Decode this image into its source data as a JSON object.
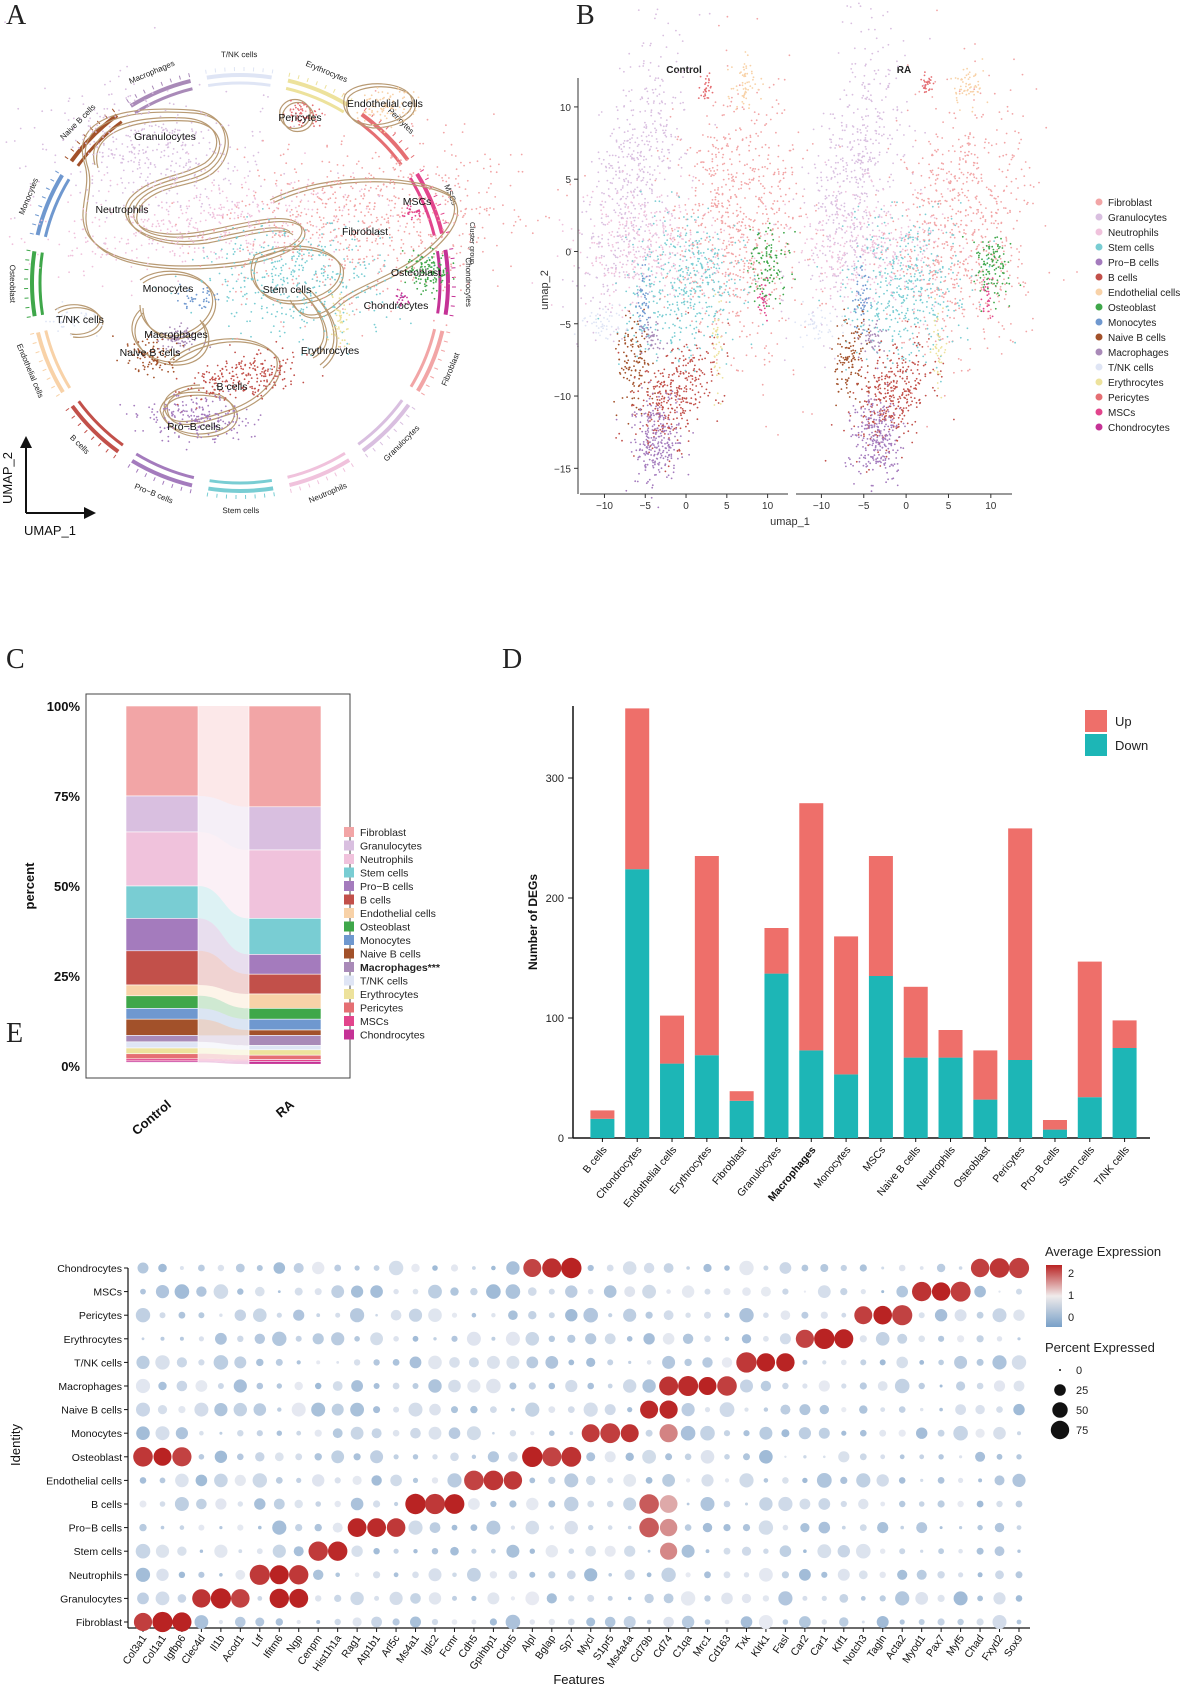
{
  "panels": {
    "a": "A",
    "b": "B",
    "c": "C",
    "d": "D",
    "e": "E"
  },
  "colors": {
    "Fibroblast": "#f2a5a6",
    "Granulocytes": "#d9bfe0",
    "Neutrophils": "#f0c2dc",
    "Stem cells": "#79cdd3",
    "Pro−B cells": "#a47bbd",
    "B cells": "#c2504a",
    "Endothelial cells": "#f8d2a8",
    "Osteoblast": "#3fa74a",
    "Monocytes": "#6f98cf",
    "Naive B cells": "#a2512a",
    "Macrophages": "#a98ab8",
    "T/NK cells": "#dfe5f5",
    "Erythrocytes": "#ede29c",
    "Pericytes": "#e56f73",
    "MSCs": "#e2458c",
    "Chondrocytes": "#c53296",
    "up": "#ee6f6a",
    "down": "#1db6b6"
  },
  "panel_a": {
    "axis_x": "UMAP_1",
    "axis_y": "UMAP_2",
    "cluster_labels": [
      "Granulocytes",
      "Neutrophils",
      "Pericytes",
      "Endothelial cells",
      "MSCs",
      "Fibroblast",
      "Osteoblast",
      "Chondrocytes",
      "Stem cells",
      "Erythrocytes",
      "Monocytes",
      "T/NK cells",
      "Macrophages",
      "Naive B cells",
      "B cells",
      "Pro−B cells"
    ],
    "ring_labels": [
      "T/NK cells",
      "Erythrocytes",
      "Pericytes",
      "MSCs",
      "Chondrocytes",
      "Fibroblast",
      "Granulocytes",
      "Neutrophils",
      "Stem cells",
      "Pro−B cells",
      "B cells",
      "Endothelial cells",
      "Osteoblast",
      "Monocytes",
      "Naive B cells",
      "Macrophages"
    ],
    "ring_title": "Cluster group"
  },
  "panel_b": {
    "facets": [
      "Control",
      "RA"
    ],
    "xlabel": "umap_1",
    "ylabel": "umap_2",
    "xticks": [
      "−10",
      "−5",
      "0",
      "5",
      "10"
    ],
    "yticks": [
      "10",
      "5",
      "0",
      "−5",
      "−10",
      "−15"
    ],
    "legend": [
      "Fibroblast",
      "Granulocytes",
      "Neutrophils",
      "Stem cells",
      "Pro−B cells",
      "B cells",
      "Endothelial cells",
      "Osteoblast",
      "Monocytes",
      "Naive B cells",
      "Macrophages",
      "T/NK cells",
      "Erythrocytes",
      "Pericytes",
      "MSCs",
      "Chondrocytes"
    ]
  },
  "chart_data": [
    {
      "type": "bar",
      "panel": "C",
      "ylabel": "percent",
      "yticks": [
        "0%",
        "25%",
        "50%",
        "75%",
        "100%"
      ],
      "categories": [
        "Control",
        "RA"
      ],
      "stack_order": [
        "Fibroblast",
        "Granulocytes",
        "Neutrophils",
        "Stem cells",
        "Pro−B cells",
        "B cells",
        "Endothelial cells",
        "Osteoblast",
        "Monocytes",
        "Naive B cells",
        "Macrophages***",
        "T/NK cells",
        "Erythrocytes",
        "Pericytes",
        "MSCs",
        "Chondrocytes"
      ],
      "series": [
        {
          "name": "Fibroblast",
          "values": [
            25,
            28
          ]
        },
        {
          "name": "Granulocytes",
          "values": [
            10,
            12
          ]
        },
        {
          "name": "Neutrophils",
          "values": [
            15,
            19
          ]
        },
        {
          "name": "Stem cells",
          "values": [
            9,
            10
          ]
        },
        {
          "name": "Pro−B cells",
          "values": [
            9,
            5.5
          ]
        },
        {
          "name": "B cells",
          "values": [
            9.5,
            5.5
          ]
        },
        {
          "name": "Endothelial cells",
          "values": [
            3,
            4
          ]
        },
        {
          "name": "Osteoblast",
          "values": [
            3.5,
            3
          ]
        },
        {
          "name": "Monocytes",
          "values": [
            3,
            3
          ]
        },
        {
          "name": "Naive B cells",
          "values": [
            4.5,
            1.5
          ]
        },
        {
          "name": "Macrophages***",
          "values": [
            1.8,
            2.8
          ]
        },
        {
          "name": "T/NK cells",
          "values": [
            1.7,
            1.2
          ]
        },
        {
          "name": "Erythrocytes",
          "values": [
            1.6,
            1.5
          ]
        },
        {
          "name": "Pericytes",
          "values": [
            1.4,
            1.2
          ]
        },
        {
          "name": "MSCs",
          "values": [
            0.6,
            0.5
          ]
        },
        {
          "name": "Chondrocytes",
          "values": [
            0.4,
            0.8
          ]
        }
      ]
    },
    {
      "type": "bar",
      "panel": "D",
      "ylabel": "Number of DEGs",
      "ylim": [
        0,
        360
      ],
      "yticks": [
        0,
        100,
        200,
        300
      ],
      "categories": [
        "B cells",
        "Chondrocytes",
        "Endothelial cells",
        "Erythrocytes",
        "Fibroblast",
        "Granulocytes",
        "Macrophages",
        "Monocytes",
        "MSCs",
        "Naive B cells",
        "Neutrophils",
        "Osteoblast",
        "Pericytes",
        "Pro−B cells",
        "Stem cells",
        "T/NK cells"
      ],
      "series": [
        {
          "name": "Down",
          "values": [
            16,
            224,
            62,
            69,
            31,
            137,
            73,
            53,
            135,
            67,
            67,
            32,
            65,
            7,
            34,
            75
          ]
        },
        {
          "name": "Up",
          "values": [
            7,
            134,
            40,
            166,
            8,
            38,
            206,
            115,
            100,
            59,
            23,
            41,
            193,
            8,
            113,
            23
          ]
        }
      ],
      "legend": [
        "Up",
        "Down"
      ]
    },
    {
      "type": "scatter",
      "panel": "E",
      "xlabel": "Features",
      "ylabel": "Identity",
      "identities": [
        "Chondrocytes",
        "MSCs",
        "Pericytes",
        "Erythrocytes",
        "T/NK cells",
        "Macrophages",
        "Naive B cells",
        "Monocytes",
        "Osteoblast",
        "Endothelial cells",
        "B cells",
        "Pro−B cells",
        "Stem cells",
        "Neutrophils",
        "Granulocytes",
        "Fibroblast"
      ],
      "features": [
        "Col3a1",
        "Col1a1",
        "Igfbp6",
        "Clec4d",
        "Il1b",
        "Acod1",
        "Ltf",
        "Ifitm6",
        "Ngp",
        "Cenpm",
        "Hist1h1a",
        "Rag1",
        "Atp1b1",
        "Arl5c",
        "Ms4a1",
        "Iglc2",
        "Fcmr",
        "Cdh5",
        "Gpihbp1",
        "Cldn5",
        "Alpl",
        "Bglap",
        "Sp7",
        "Mycl",
        "S1pr5",
        "Ms4a4a",
        "Cd79b",
        "Cd74",
        "C1qa",
        "Mrc1",
        "Cd163",
        "Txk",
        "Klrk1",
        "Fasl",
        "Car2",
        "Car1",
        "Klf1",
        "Notch3",
        "Tagln",
        "Acta2",
        "Myod1",
        "Pax7",
        "Myf5",
        "Chad",
        "Fxyd2",
        "Sox9"
      ],
      "legend_color_title": "Average Expression",
      "legend_color_ticks": [
        "2",
        "1",
        "0"
      ],
      "legend_size_title": "Percent Expressed",
      "legend_size_ticks": [
        "0",
        "25",
        "50",
        "75"
      ]
    }
  ]
}
